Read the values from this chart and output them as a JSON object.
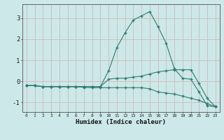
{
  "x": [
    0,
    1,
    2,
    3,
    4,
    5,
    6,
    7,
    8,
    9,
    10,
    11,
    12,
    13,
    14,
    15,
    16,
    17,
    18,
    19,
    20,
    21,
    22,
    23
  ],
  "line1": [
    -0.2,
    -0.2,
    -0.25,
    -0.25,
    -0.25,
    -0.25,
    -0.25,
    -0.25,
    -0.25,
    -0.25,
    0.5,
    1.6,
    2.3,
    2.9,
    3.1,
    3.3,
    2.6,
    1.8,
    0.6,
    0.15,
    0.1,
    -0.5,
    -1.15,
    -1.2
  ],
  "line2": [
    -0.2,
    -0.2,
    -0.25,
    -0.25,
    -0.25,
    -0.25,
    -0.25,
    -0.25,
    -0.25,
    -0.25,
    0.1,
    0.15,
    0.15,
    0.2,
    0.25,
    0.35,
    0.45,
    0.5,
    0.55,
    0.55,
    0.55,
    -0.1,
    -0.8,
    -1.2
  ],
  "line3": [
    -0.2,
    -0.2,
    -0.25,
    -0.25,
    -0.25,
    -0.25,
    -0.25,
    -0.28,
    -0.3,
    -0.3,
    -0.3,
    -0.3,
    -0.3,
    -0.3,
    -0.3,
    -0.35,
    -0.5,
    -0.55,
    -0.6,
    -0.7,
    -0.8,
    -0.9,
    -1.05,
    -1.2
  ],
  "line_color": "#2e7d6e",
  "bg_color": "#cce8e8",
  "grid_color": "#b8d4d4",
  "xlabel": "Humidex (Indice chaleur)",
  "yticks": [
    -1,
    0,
    1,
    2,
    3
  ],
  "xticks": [
    0,
    1,
    2,
    3,
    4,
    5,
    6,
    7,
    8,
    9,
    10,
    11,
    12,
    13,
    14,
    15,
    16,
    17,
    18,
    19,
    20,
    21,
    22,
    23
  ],
  "xlim": [
    -0.5,
    23.5
  ],
  "ylim": [
    -1.45,
    3.65
  ]
}
